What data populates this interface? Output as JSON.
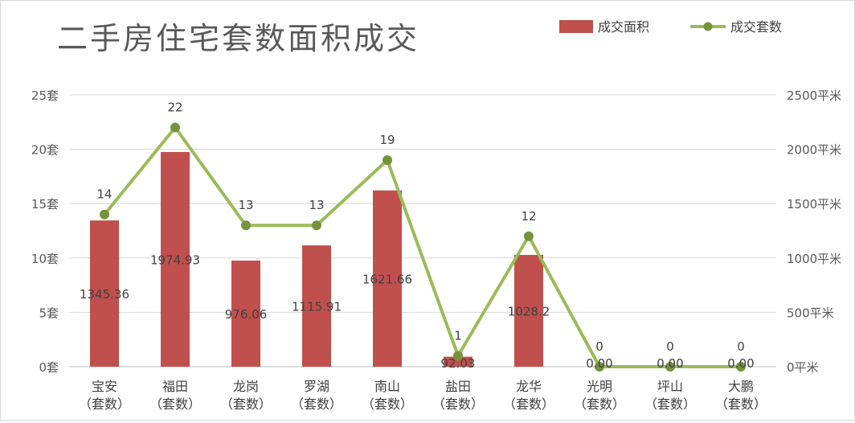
{
  "chart_data": {
    "type": "bar+line",
    "title": "二手房住宅套数面积成交",
    "legend_position": "top-right",
    "grid": true,
    "categories": [
      [
        "宝安",
        "（套数）"
      ],
      [
        "福田",
        "（套数）"
      ],
      [
        "龙岗",
        "（套数）"
      ],
      [
        "罗湖",
        "（套数）"
      ],
      [
        "南山",
        "（套数）"
      ],
      [
        "盐田",
        "（套数）"
      ],
      [
        "龙华",
        "（套数）"
      ],
      [
        "光明",
        "（套数）"
      ],
      [
        "坪山",
        "（套数）"
      ],
      [
        "大鹏",
        "（套数）"
      ]
    ],
    "series": [
      {
        "name": "成交面积",
        "type": "bar",
        "axis": "right",
        "color": "#C0504D",
        "values": [
          1345.36,
          1974.93,
          976.06,
          1115.91,
          1621.66,
          92.03,
          1028.2,
          0.0,
          0.0,
          0.0
        ],
        "labels": [
          "1345.36",
          "1974.93",
          "976.06",
          "1115.91",
          "1621.66",
          "92.03",
          "1028.2",
          "0.00",
          "0.00",
          "0.00"
        ]
      },
      {
        "name": "成交套数",
        "type": "line",
        "axis": "left",
        "color": "#9BBB59",
        "marker_color": "#76923C",
        "values": [
          14,
          22,
          13,
          13,
          19,
          1,
          12,
          0,
          0,
          0
        ],
        "labels": [
          "14",
          "22",
          "13",
          "13",
          "19",
          "1",
          "12",
          "0",
          "0",
          "0"
        ]
      }
    ],
    "left_axis": {
      "range": [
        0,
        25
      ],
      "ticks": [
        0,
        5,
        10,
        15,
        20,
        25
      ],
      "tick_labels": [
        "0套",
        "5套",
        "10套",
        "15套",
        "20套",
        "25套"
      ]
    },
    "right_axis": {
      "range": [
        0,
        2500
      ],
      "ticks": [
        0,
        500,
        1000,
        1500,
        2000,
        2500
      ],
      "tick_labels": [
        "0平米",
        "500平米",
        "1000平米",
        "1500平米",
        "2000平米",
        "2500平米"
      ]
    }
  }
}
